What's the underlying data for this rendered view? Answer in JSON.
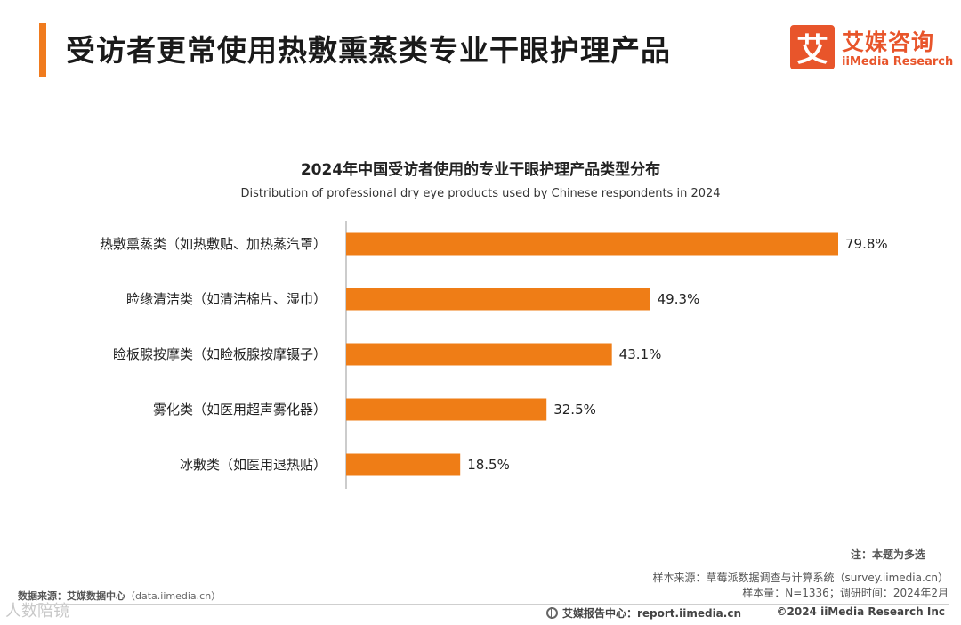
{
  "header": {
    "title": "受访者更常使用热敷熏蒸类专业干眼护理产品",
    "logo_mark": "艾",
    "logo_cn": "艾媒咨询",
    "logo_en": "iiMedia Research"
  },
  "chart_data": {
    "type": "bar",
    "orientation": "horizontal",
    "title": "2024年中国受访者使用的专业干眼护理产品类型分布",
    "subtitle": "Distribution of professional dry eye products used by Chinese respondents in 2024",
    "categories": [
      "热敷熏蒸类（如热敷贴、加热蒸汽罩）",
      "睑缘清洁类（如清洁棉片、湿巾）",
      "睑板腺按摩类（如睑板腺按摩镊子）",
      "雾化类（如医用超声雾化器）",
      "冰敷类（如医用退热贴）"
    ],
    "values": [
      79.8,
      49.3,
      43.1,
      32.5,
      18.5
    ],
    "value_labels": [
      "79.8%",
      "49.3%",
      "43.1%",
      "32.5%",
      "18.5%"
    ],
    "unit": "%",
    "xlim": [
      0,
      80
    ],
    "bar_color": "#ef7d16",
    "grid": false,
    "legend": "none"
  },
  "notes": {
    "multi_select": "注：本题为多选",
    "sample_source": "样本来源：草莓派数据调查与计算系统（survey.iimedia.cn）",
    "sample_size": "样本量：N=1336；调研时间：2024年2月",
    "data_source_label": "数据来源：艾媒数据中心",
    "data_source_url": "（data.iimedia.cn）"
  },
  "footer": {
    "report_center": "艾媒报告中心：report.iimedia.cn",
    "copyright": "©2024  iiMedia Research  Inc",
    "watermark": "人数陪镜"
  },
  "colors": {
    "accent": "#f07b1e",
    "brand": "#e8552b",
    "bar": "#ef7d16"
  }
}
